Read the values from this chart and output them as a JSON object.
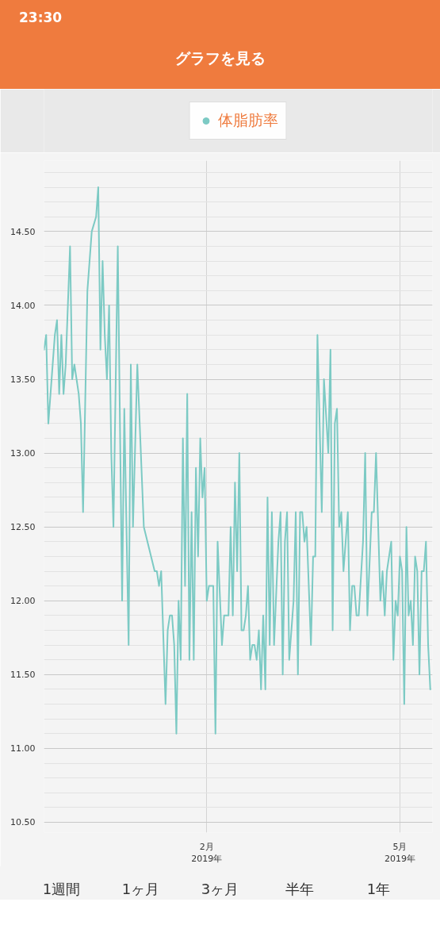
{
  "chart_data": {
    "type": "line",
    "title": "グラフを見る",
    "annotations": [
      "23:30",
      "1週間",
      "1ヶ月",
      "3ヶ月",
      "半年",
      "1年"
    ],
    "x": [
      "2018-11-18",
      "2018-11-19",
      "2018-11-20",
      "2018-11-22",
      "2018-11-23",
      "2018-11-24",
      "2018-11-25",
      "2018-11-26",
      "2018-11-27",
      "2018-11-28",
      "2018-11-29",
      "2018-11-30",
      "2018-12-01",
      "2018-12-02",
      "2018-12-03",
      "2018-12-04",
      "2018-12-05",
      "2018-12-06",
      "2018-12-08",
      "2018-12-10",
      "2018-12-12",
      "2018-12-13",
      "2018-12-14",
      "2018-12-15",
      "2018-12-16",
      "2018-12-17",
      "2018-12-18",
      "2018-12-19",
      "2018-12-20",
      "2018-12-22",
      "2018-12-24",
      "2018-12-25",
      "2018-12-27",
      "2018-12-28",
      "2018-12-29",
      "2018-12-31",
      "2019-01-03",
      "2019-01-08",
      "2019-01-09",
      "2019-01-10",
      "2019-01-11",
      "2019-01-13",
      "2019-01-14",
      "2019-01-15",
      "2019-01-16",
      "2019-01-17",
      "2019-01-18",
      "2019-01-19",
      "2019-01-20",
      "2019-01-21",
      "2019-01-22",
      "2019-01-23",
      "2019-01-24",
      "2019-01-25",
      "2019-01-26",
      "2019-01-27",
      "2019-01-28",
      "2019-01-29",
      "2019-01-30",
      "2019-01-31",
      "2019-02-01",
      "2019-02-02",
      "2019-02-04",
      "2019-02-05",
      "2019-02-06",
      "2019-02-08",
      "2019-02-09",
      "2019-02-10",
      "2019-02-11",
      "2019-02-12",
      "2019-02-13",
      "2019-02-14",
      "2019-02-15",
      "2019-02-16",
      "2019-02-17",
      "2019-02-18",
      "2019-02-19",
      "2019-02-20",
      "2019-02-21",
      "2019-02-22",
      "2019-02-23",
      "2019-02-24",
      "2019-02-25",
      "2019-02-26",
      "2019-02-27",
      "2019-02-28",
      "2019-03-01",
      "2019-03-02",
      "2019-03-03",
      "2019-03-04",
      "2019-03-06",
      "2019-03-07",
      "2019-03-08",
      "2019-03-09",
      "2019-03-10",
      "2019-03-11",
      "2019-03-13",
      "2019-03-14",
      "2019-03-15",
      "2019-03-16",
      "2019-03-17",
      "2019-03-18",
      "2019-03-19",
      "2019-03-21",
      "2019-03-22",
      "2019-03-23",
      "2019-03-24",
      "2019-03-26",
      "2019-03-27",
      "2019-03-29",
      "2019-03-30",
      "2019-03-31",
      "2019-04-01",
      "2019-04-02",
      "2019-04-03",
      "2019-04-04",
      "2019-04-05",
      "2019-04-07",
      "2019-04-08",
      "2019-04-09",
      "2019-04-10",
      "2019-04-11",
      "2019-04-12",
      "2019-04-14",
      "2019-04-15",
      "2019-04-16",
      "2019-04-18",
      "2019-04-19",
      "2019-04-20",
      "2019-04-22",
      "2019-04-23",
      "2019-04-24",
      "2019-04-25",
      "2019-04-27",
      "2019-04-28",
      "2019-04-29",
      "2019-04-30",
      "2019-05-01",
      "2019-05-02",
      "2019-05-03",
      "2019-05-04",
      "2019-05-05",
      "2019-05-06",
      "2019-05-07",
      "2019-05-08",
      "2019-05-09",
      "2019-05-10",
      "2019-05-11",
      "2019-05-12",
      "2019-05-13",
      "2019-05-14",
      "2019-05-15"
    ],
    "series": [
      {
        "name": "体脂肪率",
        "color": "#7ccac4",
        "values": [
          13.7,
          13.8,
          13.2,
          13.6,
          13.8,
          13.9,
          13.4,
          13.8,
          13.4,
          13.6,
          14.0,
          14.4,
          13.5,
          13.6,
          13.5,
          13.4,
          13.2,
          12.6,
          14.1,
          14.5,
          14.6,
          14.8,
          13.7,
          14.3,
          13.8,
          13.5,
          14.0,
          13.0,
          12.5,
          14.4,
          12.0,
          13.3,
          11.7,
          13.6,
          12.5,
          13.6,
          12.5,
          12.2,
          12.2,
          12.1,
          12.2,
          11.3,
          11.8,
          11.9,
          11.9,
          11.7,
          11.1,
          12.0,
          11.6,
          13.1,
          12.1,
          13.4,
          11.6,
          12.6,
          11.6,
          12.9,
          12.3,
          13.1,
          12.7,
          12.9,
          12.0,
          12.1,
          12.1,
          11.1,
          12.4,
          11.7,
          11.9,
          11.9,
          11.9,
          12.5,
          11.9,
          12.8,
          12.2,
          13.0,
          11.8,
          11.8,
          11.9,
          12.1,
          11.6,
          11.7,
          11.7,
          11.6,
          11.8,
          11.4,
          11.9,
          11.4,
          12.7,
          11.7,
          12.6,
          11.7,
          12.4,
          12.6,
          11.5,
          12.4,
          12.6,
          11.6,
          12.0,
          12.6,
          11.5,
          12.6,
          12.6,
          12.4,
          12.5,
          11.7,
          12.3,
          12.3,
          13.8,
          12.6,
          13.5,
          13.0,
          13.7,
          11.8,
          13.2,
          13.3,
          12.5,
          12.6,
          12.2,
          12.6,
          11.8,
          12.1,
          12.1,
          11.9,
          11.9,
          12.4,
          13.0,
          11.9,
          12.6,
          12.6,
          13.0,
          12.0,
          12.2,
          11.9,
          12.2,
          12.4,
          11.6,
          12.0,
          11.9,
          12.3,
          12.2,
          11.3,
          12.5,
          11.9,
          12.0,
          11.7,
          12.3,
          12.2,
          11.5,
          12.2,
          12.2,
          12.4,
          11.7,
          11.4
        ]
      }
    ],
    "xlim": [
      "2018-11-18",
      "2019-05-16"
    ],
    "xticks": [
      {
        "value": "2019-02-01",
        "label": "2月\n2019年"
      },
      {
        "value": "2019-05-01",
        "label": "5月\n2019年"
      }
    ],
    "ylim": [
      10.43,
      14.98
    ],
    "yticks": [
      {
        "value": 10.5,
        "label": "10.50"
      },
      {
        "value": 10.6,
        "label": null
      },
      {
        "value": 10.7,
        "label": null
      },
      {
        "value": 10.8,
        "label": null
      },
      {
        "value": 10.9,
        "label": null
      },
      {
        "value": 11.0,
        "label": "11.00"
      },
      {
        "value": 11.1,
        "label": null
      },
      {
        "value": 11.2,
        "label": null
      },
      {
        "value": 11.3,
        "label": null
      },
      {
        "value": 11.4,
        "label": null
      },
      {
        "value": 11.5,
        "label": "11.50"
      },
      {
        "value": 11.6,
        "label": null
      },
      {
        "value": 11.7,
        "label": null
      },
      {
        "value": 11.8,
        "label": null
      },
      {
        "value": 11.9,
        "label": null
      },
      {
        "value": 12.0,
        "label": "12.00"
      },
      {
        "value": 12.1,
        "label": null
      },
      {
        "value": 12.2,
        "label": null
      },
      {
        "value": 12.3,
        "label": null
      },
      {
        "value": 12.4,
        "label": null
      },
      {
        "value": 12.5,
        "label": "12.50"
      },
      {
        "value": 12.6,
        "label": null
      },
      {
        "value": 12.7,
        "label": null
      },
      {
        "value": 12.8,
        "label": null
      },
      {
        "value": 12.9,
        "label": null
      },
      {
        "value": 13.0,
        "label": "13.00"
      },
      {
        "value": 13.1,
        "label": null
      },
      {
        "value": 13.2,
        "label": null
      },
      {
        "value": 13.3,
        "label": null
      },
      {
        "value": 13.4,
        "label": null
      },
      {
        "value": 13.5,
        "label": "13.50"
      },
      {
        "value": 13.6,
        "label": null
      },
      {
        "value": 13.7,
        "label": null
      },
      {
        "value": 13.8,
        "label": null
      },
      {
        "value": 13.9,
        "label": null
      },
      {
        "value": 14.0,
        "label": "14.00"
      },
      {
        "value": 14.1,
        "label": null
      },
      {
        "value": 14.2,
        "label": null
      },
      {
        "value": 14.3,
        "label": null
      },
      {
        "value": 14.4,
        "label": null
      },
      {
        "value": 14.5,
        "label": "14.50"
      },
      {
        "value": 14.6,
        "label": null
      },
      {
        "value": 14.7,
        "label": null
      },
      {
        "value": 14.8,
        "label": null
      },
      {
        "value": 14.9,
        "label": null
      }
    ],
    "grid": true,
    "legend": "top",
    "marker": "none",
    "line_style": "solid"
  }
}
